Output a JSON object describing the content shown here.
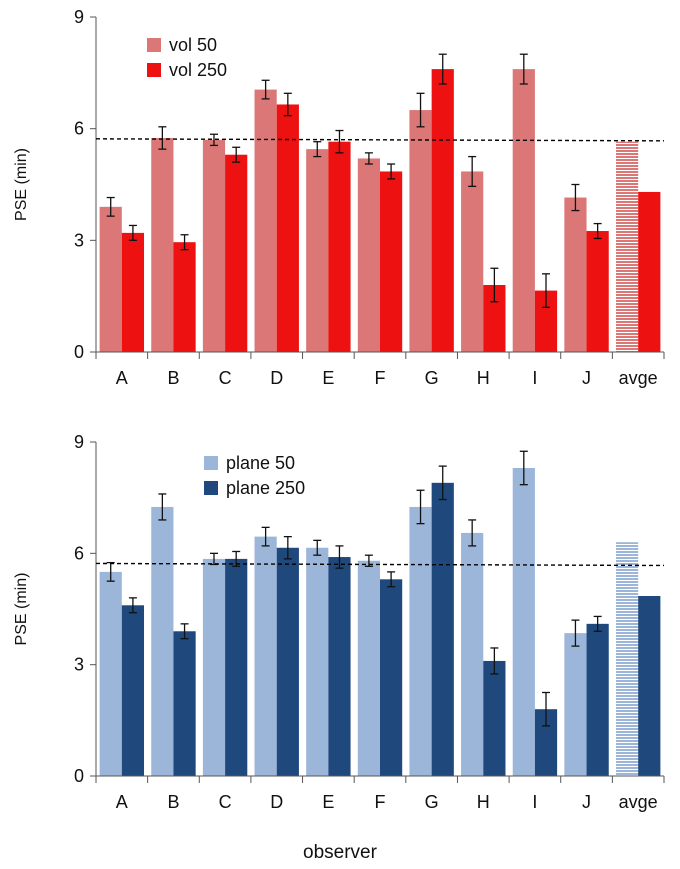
{
  "xlabel": "observer",
  "colors": {
    "vol50": "#dc7777",
    "vol250": "#ee1111",
    "plane50": "#9cb6da",
    "plane250": "#1f497d"
  },
  "chart_data": [
    {
      "type": "bar",
      "title": "",
      "xlabel": "observer",
      "ylabel": "PSE (min)",
      "ylim": [
        0,
        9
      ],
      "yticks": [
        "0",
        "3",
        "6",
        "9"
      ],
      "categories": [
        "A",
        "B",
        "C",
        "D",
        "E",
        "F",
        "G",
        "H",
        "I",
        "J",
        "avge"
      ],
      "legend_position": "top-left",
      "reference_line": 5.7,
      "series": [
        {
          "name": "vol 50",
          "color": "#dc7777",
          "values": [
            3.9,
            5.75,
            5.7,
            7.05,
            5.45,
            5.2,
            6.5,
            4.85,
            7.6,
            4.15,
            5.65
          ],
          "errors": [
            0.25,
            0.3,
            0.15,
            0.25,
            0.2,
            0.15,
            0.45,
            0.4,
            0.4,
            0.35,
            0
          ]
        },
        {
          "name": "vol 250",
          "color": "#ee1111",
          "values": [
            3.2,
            2.95,
            5.3,
            6.65,
            5.65,
            4.85,
            7.6,
            1.8,
            1.65,
            3.25,
            4.3
          ],
          "errors": [
            0.2,
            0.2,
            0.2,
            0.3,
            0.3,
            0.2,
            0.4,
            0.45,
            0.45,
            0.2,
            0
          ]
        }
      ]
    },
    {
      "type": "bar",
      "title": "",
      "xlabel": "observer",
      "ylabel": "PSE (min)",
      "ylim": [
        0,
        9
      ],
      "yticks": [
        "0",
        "3",
        "6",
        "9"
      ],
      "categories": [
        "A",
        "B",
        "C",
        "D",
        "E",
        "F",
        "G",
        "H",
        "I",
        "J",
        "avge"
      ],
      "legend_position": "top-left",
      "reference_line": 5.7,
      "series": [
        {
          "name": "plane 50",
          "color": "#9cb6da",
          "values": [
            5.5,
            7.25,
            5.85,
            6.45,
            6.15,
            5.8,
            7.25,
            6.55,
            8.3,
            3.85,
            6.3
          ],
          "errors": [
            0.25,
            0.35,
            0.15,
            0.25,
            0.2,
            0.15,
            0.45,
            0.35,
            0.45,
            0.35,
            0
          ]
        },
        {
          "name": "plane 250",
          "color": "#1f497d",
          "values": [
            4.6,
            3.9,
            5.85,
            6.15,
            5.9,
            5.3,
            7.9,
            3.1,
            1.8,
            4.1,
            4.85
          ],
          "errors": [
            0.2,
            0.2,
            0.2,
            0.3,
            0.3,
            0.2,
            0.45,
            0.35,
            0.45,
            0.2,
            0
          ]
        }
      ]
    }
  ]
}
